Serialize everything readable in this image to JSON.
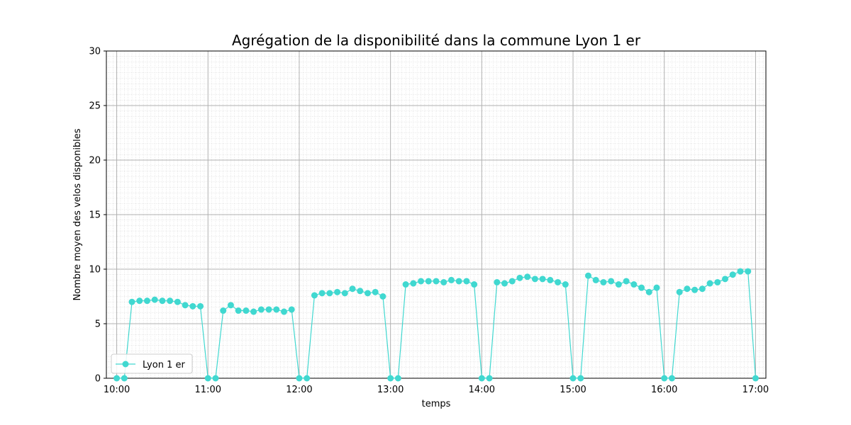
{
  "chart_data": {
    "type": "line",
    "title": "Agrégation de la disponibilité dans la commune Lyon 1 er",
    "xlabel": "temps",
    "ylabel": "Nombre moyen des velos disponibles",
    "x_unit": "minutes after 10:00",
    "xlim": [
      -6.8,
      426.8
    ],
    "ylim": [
      0,
      30
    ],
    "x_ticks": [
      {
        "value": 0,
        "label": "10:00"
      },
      {
        "value": 60,
        "label": "11:00"
      },
      {
        "value": 120,
        "label": "12:00"
      },
      {
        "value": 180,
        "label": "13:00"
      },
      {
        "value": 240,
        "label": "14:00"
      },
      {
        "value": 300,
        "label": "15:00"
      },
      {
        "value": 360,
        "label": "16:00"
      },
      {
        "value": 420,
        "label": "17:00"
      }
    ],
    "y_ticks": [
      0,
      5,
      10,
      15,
      20,
      25,
      30
    ],
    "grid": true,
    "minor_grid": true,
    "legend_position": "bottom-left",
    "series": [
      {
        "name": "Lyon 1 er",
        "color": "#40d8d0",
        "marker": "circle",
        "points": [
          [
            0,
            0
          ],
          [
            5,
            0
          ],
          [
            10,
            7.0
          ],
          [
            15,
            7.1
          ],
          [
            20,
            7.1
          ],
          [
            25,
            7.2
          ],
          [
            30,
            7.1
          ],
          [
            35,
            7.1
          ],
          [
            40,
            7.0
          ],
          [
            45,
            6.7
          ],
          [
            50,
            6.6
          ],
          [
            55,
            6.6
          ],
          [
            60,
            0
          ],
          [
            65,
            0
          ],
          [
            70,
            6.2
          ],
          [
            75,
            6.7
          ],
          [
            80,
            6.2
          ],
          [
            85,
            6.2
          ],
          [
            90,
            6.1
          ],
          [
            95,
            6.3
          ],
          [
            100,
            6.3
          ],
          [
            105,
            6.3
          ],
          [
            110,
            6.1
          ],
          [
            115,
            6.3
          ],
          [
            120,
            0
          ],
          [
            125,
            0
          ],
          [
            130,
            7.6
          ],
          [
            135,
            7.8
          ],
          [
            140,
            7.8
          ],
          [
            145,
            7.9
          ],
          [
            150,
            7.8
          ],
          [
            155,
            8.2
          ],
          [
            160,
            8.0
          ],
          [
            165,
            7.8
          ],
          [
            170,
            7.9
          ],
          [
            175,
            7.5
          ],
          [
            180,
            0
          ],
          [
            185,
            0
          ],
          [
            190,
            8.6
          ],
          [
            195,
            8.7
          ],
          [
            200,
            8.9
          ],
          [
            205,
            8.9
          ],
          [
            210,
            8.9
          ],
          [
            215,
            8.8
          ],
          [
            220,
            9.0
          ],
          [
            225,
            8.9
          ],
          [
            230,
            8.9
          ],
          [
            235,
            8.6
          ],
          [
            240,
            0
          ],
          [
            245,
            0
          ],
          [
            250,
            8.8
          ],
          [
            255,
            8.7
          ],
          [
            260,
            8.9
          ],
          [
            265,
            9.2
          ],
          [
            270,
            9.3
          ],
          [
            275,
            9.1
          ],
          [
            280,
            9.1
          ],
          [
            285,
            9.0
          ],
          [
            290,
            8.8
          ],
          [
            295,
            8.6
          ],
          [
            300,
            0
          ],
          [
            305,
            0
          ],
          [
            310,
            9.4
          ],
          [
            315,
            9.0
          ],
          [
            320,
            8.8
          ],
          [
            325,
            8.9
          ],
          [
            330,
            8.6
          ],
          [
            335,
            8.9
          ],
          [
            340,
            8.6
          ],
          [
            345,
            8.3
          ],
          [
            350,
            7.9
          ],
          [
            355,
            8.3
          ],
          [
            360,
            0
          ],
          [
            365,
            0
          ],
          [
            370,
            7.9
          ],
          [
            375,
            8.2
          ],
          [
            380,
            8.1
          ],
          [
            385,
            8.2
          ],
          [
            390,
            8.7
          ],
          [
            395,
            8.8
          ],
          [
            400,
            9.1
          ],
          [
            405,
            9.5
          ],
          [
            410,
            9.8
          ],
          [
            415,
            9.8
          ],
          [
            420,
            0
          ]
        ]
      }
    ]
  }
}
